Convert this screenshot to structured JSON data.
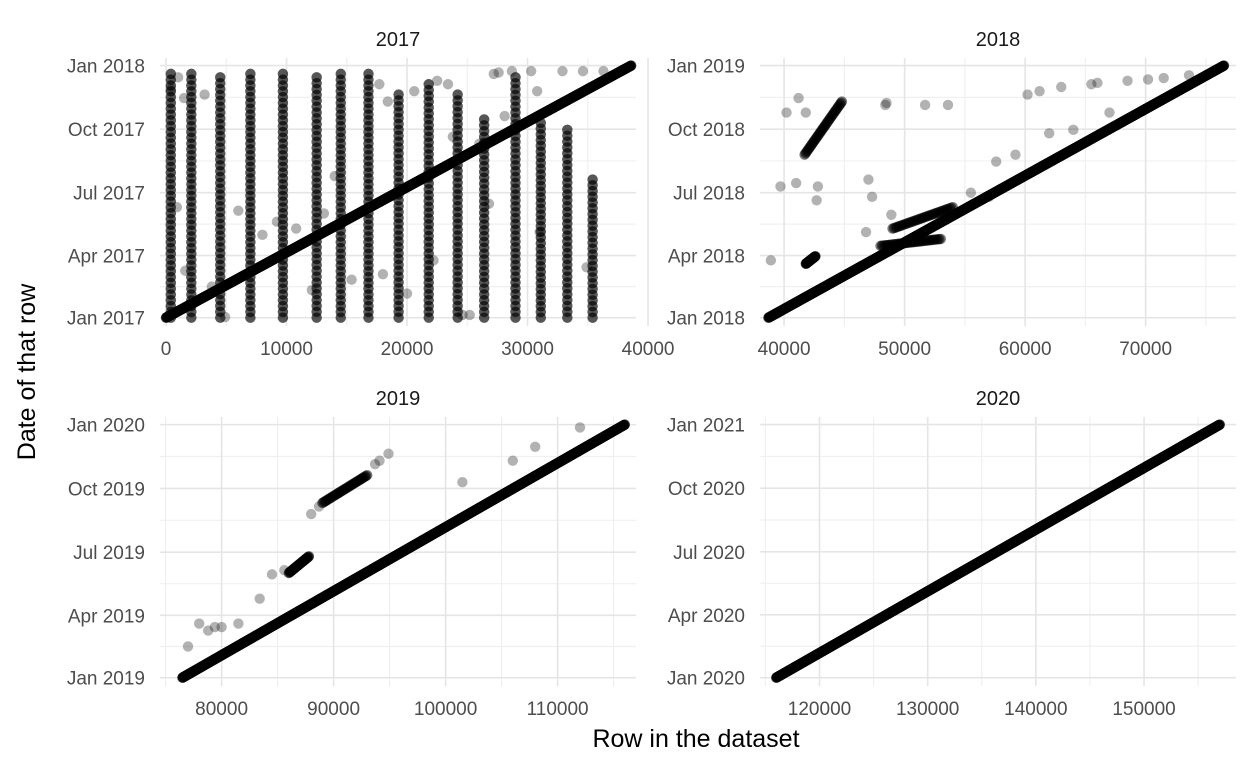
{
  "chart_data": {
    "type": "scatter",
    "xlabel": "Row in the dataset",
    "ylabel": "Date of that row",
    "grid": true,
    "point_color": "#000000",
    "point_alpha": 0.3,
    "panels": [
      {
        "title": "2017",
        "xlim": [
          -500,
          39000
        ],
        "ylim": [
          "2016-12-20",
          "2018-01-12"
        ],
        "x_ticks": [
          0,
          10000,
          20000,
          30000,
          40000
        ],
        "y_ticks": [
          {
            "date": "2017-01-01",
            "label": "Jan 2017"
          },
          {
            "date": "2017-04-01",
            "label": "Apr 2017"
          },
          {
            "date": "2017-07-01",
            "label": "Jul 2017"
          },
          {
            "date": "2017-10-01",
            "label": "Oct 2017"
          },
          {
            "date": "2018-01-01",
            "label": "Jan 2018"
          }
        ],
        "diagonal": {
          "x0": 0,
          "date0": "2017-01-01",
          "x1": 38600,
          "date1": "2018-01-01"
        },
        "vertical_columns": [
          {
            "x": 400,
            "from": "2017-01-01",
            "to": "2017-12-20"
          },
          {
            "x": 2100,
            "from": "2017-01-01",
            "to": "2017-12-20"
          },
          {
            "x": 4500,
            "from": "2017-01-01",
            "to": "2017-12-15"
          },
          {
            "x": 7000,
            "from": "2017-01-01",
            "to": "2017-12-20"
          },
          {
            "x": 9700,
            "from": "2017-01-01",
            "to": "2017-12-20"
          },
          {
            "x": 12500,
            "from": "2017-01-01",
            "to": "2017-12-15"
          },
          {
            "x": 14500,
            "from": "2017-01-01",
            "to": "2017-12-20"
          },
          {
            "x": 16800,
            "from": "2017-01-01",
            "to": "2017-12-20"
          },
          {
            "x": 19300,
            "from": "2017-01-01",
            "to": "2017-11-20"
          },
          {
            "x": 21800,
            "from": "2017-01-01",
            "to": "2017-12-05"
          },
          {
            "x": 24200,
            "from": "2017-01-01",
            "to": "2017-11-20"
          },
          {
            "x": 26400,
            "from": "2017-01-01",
            "to": "2017-10-15"
          },
          {
            "x": 29000,
            "from": "2017-01-01",
            "to": "2017-12-15"
          },
          {
            "x": 31100,
            "from": "2017-01-01",
            "to": "2017-10-10"
          },
          {
            "x": 33300,
            "from": "2017-01-01",
            "to": "2017-09-30"
          },
          {
            "x": 35400,
            "from": "2017-01-01",
            "to": "2017-07-20"
          }
        ],
        "scattered_points": [
          [
            400,
            "2017-11-28"
          ],
          [
            1000,
            "2017-12-15"
          ],
          [
            1500,
            "2017-11-15"
          ],
          [
            3200,
            "2017-11-20"
          ],
          [
            900,
            "2017-06-10"
          ],
          [
            3800,
            "2017-02-15"
          ],
          [
            4900,
            "2017-01-02"
          ],
          [
            6000,
            "2017-06-05"
          ],
          [
            9200,
            "2017-05-20"
          ],
          [
            12100,
            "2017-02-10"
          ],
          [
            13100,
            "2017-06-01"
          ],
          [
            15400,
            "2017-02-25"
          ],
          [
            17700,
            "2017-12-05"
          ],
          [
            18400,
            "2017-11-10"
          ],
          [
            20600,
            "2017-11-25"
          ],
          [
            22500,
            "2017-12-10"
          ],
          [
            23400,
            "2017-12-05"
          ],
          [
            24600,
            "2017-01-05"
          ],
          [
            25200,
            "2017-01-05"
          ],
          [
            27200,
            "2017-12-20"
          ],
          [
            27600,
            "2017-12-22"
          ],
          [
            28700,
            "2017-12-24"
          ],
          [
            30300,
            "2017-12-24"
          ],
          [
            32900,
            "2017-12-24"
          ],
          [
            34600,
            "2017-12-24"
          ],
          [
            36300,
            "2017-12-24"
          ],
          [
            22200,
            "2017-03-25"
          ],
          [
            26800,
            "2017-06-15"
          ],
          [
            31000,
            "2017-05-05"
          ],
          [
            34900,
            "2017-03-15"
          ],
          [
            18000,
            "2017-03-05"
          ],
          [
            20000,
            "2017-02-05"
          ],
          [
            28100,
            "2017-10-20"
          ],
          [
            26000,
            "2017-09-10"
          ],
          [
            30800,
            "2017-11-25"
          ],
          [
            1600,
            "2017-03-10"
          ],
          [
            8000,
            "2017-05-01"
          ],
          [
            10800,
            "2017-05-10"
          ],
          [
            14000,
            "2017-07-25"
          ],
          [
            23800,
            "2017-09-20"
          ]
        ]
      },
      {
        "title": "2018",
        "xlim": [
          38000,
          77500
        ],
        "ylim": [
          "2017-12-20",
          "2019-01-12"
        ],
        "x_ticks": [
          40000,
          50000,
          60000,
          70000
        ],
        "y_ticks": [
          {
            "date": "2018-01-01",
            "label": "Jan 2018"
          },
          {
            "date": "2018-04-01",
            "label": "Apr 2018"
          },
          {
            "date": "2018-07-01",
            "label": "Jul 2018"
          },
          {
            "date": "2018-10-01",
            "label": "Oct 2018"
          },
          {
            "date": "2019-01-01",
            "label": "Jan 2019"
          }
        ],
        "diagonal": {
          "x0": 38700,
          "date0": "2018-01-01",
          "x1": 76500,
          "date1": "2019-01-01"
        },
        "segments": [
          {
            "x0": 41700,
            "date0": "2018-08-25",
            "x1": 44800,
            "date1": "2018-11-10"
          },
          {
            "x0": 41800,
            "date0": "2018-03-20",
            "x1": 42600,
            "date1": "2018-03-31"
          },
          {
            "x0": 48000,
            "date0": "2018-04-15",
            "x1": 53000,
            "date1": "2018-04-25"
          },
          {
            "x0": 49000,
            "date0": "2018-05-10",
            "x1": 54000,
            "date1": "2018-06-10"
          }
        ],
        "scattered_points": [
          [
            38900,
            "2018-03-25"
          ],
          [
            40200,
            "2018-10-25"
          ],
          [
            41200,
            "2018-11-15"
          ],
          [
            41800,
            "2018-10-25"
          ],
          [
            41000,
            "2018-07-15"
          ],
          [
            39700,
            "2018-07-10"
          ],
          [
            42800,
            "2018-07-10"
          ],
          [
            42700,
            "2018-06-20"
          ],
          [
            48400,
            "2018-11-05"
          ],
          [
            48500,
            "2018-11-08"
          ],
          [
            51700,
            "2018-11-05"
          ],
          [
            53600,
            "2018-11-05"
          ],
          [
            47300,
            "2018-06-25"
          ],
          [
            47000,
            "2018-07-20"
          ],
          [
            46800,
            "2018-05-05"
          ],
          [
            60200,
            "2018-11-20"
          ],
          [
            61200,
            "2018-11-25"
          ],
          [
            63000,
            "2018-12-01"
          ],
          [
            65500,
            "2018-12-05"
          ],
          [
            66000,
            "2018-12-07"
          ],
          [
            68500,
            "2018-12-10"
          ],
          [
            70200,
            "2018-12-12"
          ],
          [
            71500,
            "2018-12-14"
          ],
          [
            73600,
            "2018-12-18"
          ],
          [
            57600,
            "2018-08-15"
          ],
          [
            59200,
            "2018-08-25"
          ],
          [
            62000,
            "2018-09-25"
          ],
          [
            64000,
            "2018-09-30"
          ],
          [
            67000,
            "2018-10-25"
          ],
          [
            48900,
            "2018-05-30"
          ],
          [
            55500,
            "2018-07-01"
          ],
          [
            57000,
            "2018-06-25"
          ]
        ]
      },
      {
        "title": "2019",
        "xlim": [
          74500,
          117000
        ],
        "ylim": [
          "2018-12-20",
          "2020-01-12"
        ],
        "x_ticks": [
          80000,
          90000,
          100000,
          110000
        ],
        "y_ticks": [
          {
            "date": "2019-01-01",
            "label": "Jan 2019"
          },
          {
            "date": "2019-04-01",
            "label": "Apr 2019"
          },
          {
            "date": "2019-07-01",
            "label": "Jul 2019"
          },
          {
            "date": "2019-10-01",
            "label": "Oct 2019"
          },
          {
            "date": "2020-01-01",
            "label": "Jan 2020"
          }
        ],
        "diagonal": {
          "x0": 76500,
          "date0": "2019-01-01",
          "x1": 116000,
          "date1": "2020-01-01"
        },
        "segments": [
          {
            "x0": 89000,
            "date0": "2019-09-10",
            "x1": 93000,
            "date1": "2019-10-20"
          },
          {
            "x0": 86000,
            "date0": "2019-06-01",
            "x1": 87800,
            "date1": "2019-06-25"
          }
        ],
        "scattered_points": [
          [
            77000,
            "2019-02-15"
          ],
          [
            78000,
            "2019-03-20"
          ],
          [
            78800,
            "2019-03-10"
          ],
          [
            79400,
            "2019-03-15"
          ],
          [
            80000,
            "2019-03-15"
          ],
          [
            81500,
            "2019-03-20"
          ],
          [
            83400,
            "2019-04-25"
          ],
          [
            84500,
            "2019-05-30"
          ],
          [
            85600,
            "2019-06-05"
          ],
          [
            88000,
            "2019-08-25"
          ],
          [
            88700,
            "2019-09-05"
          ],
          [
            94100,
            "2019-11-10"
          ],
          [
            94900,
            "2019-11-20"
          ],
          [
            90500,
            "2019-09-25"
          ],
          [
            92500,
            "2019-10-15"
          ],
          [
            93700,
            "2019-11-05"
          ],
          [
            112000,
            "2019-12-28"
          ],
          [
            106000,
            "2019-11-10"
          ],
          [
            108000,
            "2019-11-30"
          ],
          [
            101500,
            "2019-10-10"
          ]
        ]
      },
      {
        "title": "2020",
        "xlim": [
          114500,
          158500
        ],
        "ylim": [
          "2019-12-20",
          "2021-01-12"
        ],
        "x_ticks": [
          120000,
          130000,
          140000,
          150000
        ],
        "y_ticks": [
          {
            "date": "2020-01-01",
            "label": "Jan 2020"
          },
          {
            "date": "2020-04-01",
            "label": "Apr 2020"
          },
          {
            "date": "2020-07-01",
            "label": "Jul 2020"
          },
          {
            "date": "2020-10-01",
            "label": "Oct 2020"
          },
          {
            "date": "2021-01-01",
            "label": "Jan 2021"
          }
        ],
        "diagonal": {
          "x0": 116000,
          "date0": "2020-01-01",
          "x1": 157000,
          "date1": "2021-01-01"
        },
        "scattered_points": []
      }
    ]
  }
}
